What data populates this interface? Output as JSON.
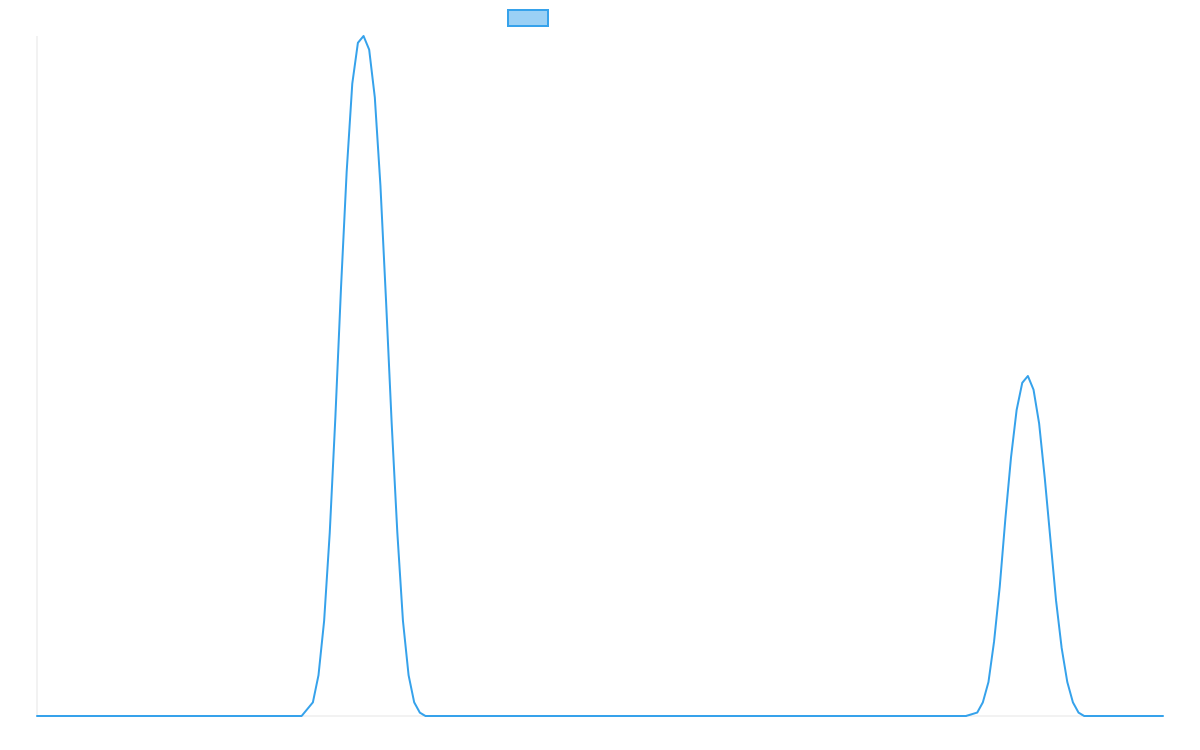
{
  "chart_data": {
    "type": "line",
    "title": "",
    "xlabel": "",
    "ylabel": "",
    "xlim": [
      0,
      100
    ],
    "ylim": [
      0,
      1
    ],
    "grid": false,
    "legend": {
      "position": "top-center",
      "show_label": false
    },
    "series": [
      {
        "name": "",
        "color": "#36a2eb",
        "fill_color": "#9ad0f5",
        "x": [
          0,
          23.5,
          24.5,
          25.0,
          25.5,
          26.0,
          26.5,
          27.0,
          27.5,
          28.0,
          28.5,
          29.0,
          29.5,
          30.0,
          30.5,
          31.0,
          31.5,
          32.0,
          32.5,
          33.0,
          33.5,
          34.0,
          34.5,
          35.0,
          36.0,
          82.5,
          83.5,
          84.0,
          84.5,
          85.0,
          85.5,
          86.0,
          86.5,
          87.0,
          87.5,
          88.0,
          88.5,
          89.0,
          89.5,
          90.0,
          90.5,
          91.0,
          91.5,
          92.0,
          92.5,
          93.0,
          93.5,
          94.0,
          95.0,
          100
        ],
        "y": [
          0,
          0,
          0.02,
          0.06,
          0.14,
          0.27,
          0.44,
          0.63,
          0.8,
          0.93,
          0.99,
          1.0,
          0.98,
          0.91,
          0.78,
          0.61,
          0.43,
          0.27,
          0.14,
          0.06,
          0.02,
          0.005,
          0,
          0,
          0,
          0,
          0.005,
          0.02,
          0.05,
          0.11,
          0.19,
          0.29,
          0.38,
          0.45,
          0.49,
          0.5,
          0.48,
          0.43,
          0.35,
          0.26,
          0.17,
          0.1,
          0.05,
          0.02,
          0.005,
          0,
          0,
          0,
          0,
          0
        ]
      }
    ]
  }
}
